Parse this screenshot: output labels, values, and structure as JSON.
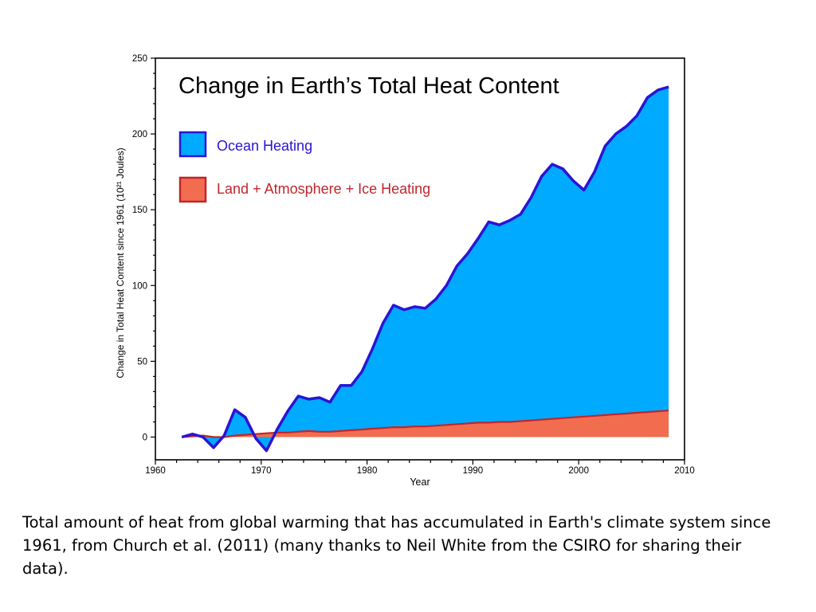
{
  "slide": {
    "caption": "Total amount of heat from global warming that has accumulated in Earth's climate system since 1961, from Church et al. (2011) (many thanks to Neil White from the CSIRO for sharing their data)."
  },
  "chart_data": {
    "type": "area",
    "title": "Change in Earth’s Total Heat Content",
    "xlabel": "Year",
    "ylabel": "Change in Total Heat Content since 1961 (10²¹ Joules)",
    "xlim": [
      1960,
      2010
    ],
    "ylim": [
      -15,
      250
    ],
    "x_ticks": [
      1960,
      1970,
      1980,
      1990,
      2000,
      2010
    ],
    "y_ticks": [
      0,
      50,
      100,
      150,
      200,
      250
    ],
    "grid": false,
    "legend_position": "top-left",
    "x": [
      1962.5,
      1963.5,
      1964.5,
      1965.5,
      1966.5,
      1967.5,
      1968.5,
      1969.5,
      1970.5,
      1971.5,
      1972.5,
      1973.5,
      1974.5,
      1975.5,
      1976.5,
      1977.5,
      1978.5,
      1979.5,
      1980.5,
      1981.5,
      1982.5,
      1983.5,
      1984.5,
      1985.5,
      1986.5,
      1987.5,
      1988.5,
      1989.5,
      1990.5,
      1991.5,
      1992.5,
      1993.5,
      1994.5,
      1995.5,
      1996.5,
      1997.5,
      1998.5,
      1999.5,
      2000.5,
      2001.5,
      2002.5,
      2003.5,
      2004.5,
      2005.5,
      2006.5,
      2007.5,
      2008.5
    ],
    "series": [
      {
        "name": "Land + Atmosphere + Ice Heating",
        "color": "#f26d4f",
        "line_color": "#c0262c",
        "values": [
          0,
          0.5,
          1,
          0,
          0,
          1,
          1.5,
          2,
          2.5,
          3,
          3,
          3.5,
          4,
          3.5,
          3.5,
          4,
          4.5,
          5,
          5.5,
          6,
          6.5,
          6.5,
          7,
          7,
          7.5,
          8,
          8.5,
          9,
          9.5,
          9.5,
          10,
          10,
          10.5,
          11,
          11.5,
          12,
          12.5,
          13,
          13.5,
          14,
          14.5,
          15,
          15.5,
          16,
          16.5,
          17,
          17.5
        ]
      },
      {
        "name": "Ocean Heating",
        "color": "#00aaff",
        "line_color": "#2a14d4",
        "values": [
          0,
          2,
          0,
          -7,
          1,
          18,
          13,
          -1,
          -9,
          5,
          17,
          27,
          25,
          26,
          23,
          34,
          34,
          43,
          58,
          75,
          87,
          84,
          86,
          85,
          91,
          100,
          113,
          121,
          131,
          142,
          140,
          143,
          147,
          158,
          172,
          180,
          177,
          169,
          163,
          175,
          192,
          200,
          205,
          212,
          224,
          229,
          231
        ]
      }
    ]
  }
}
